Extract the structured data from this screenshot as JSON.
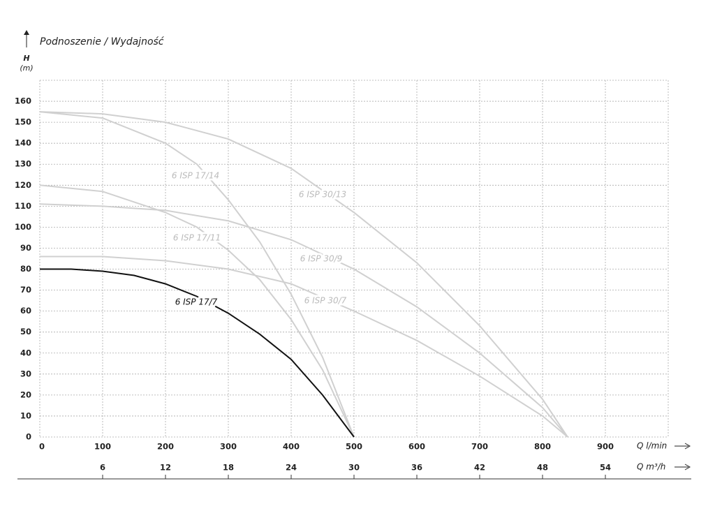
{
  "chart_data": {
    "type": "line",
    "title": "Podnoszenie / Wydajność",
    "ylabel": "H",
    "yunit": "(m)",
    "xlabel": "Q l/min",
    "x2label": "Q m³/h",
    "xlim": [
      0,
      1000
    ],
    "xticks": [
      0,
      100,
      200,
      300,
      400,
      500,
      600,
      700,
      800,
      900
    ],
    "x2lim": [
      0,
      60
    ],
    "x2ticks": [
      6,
      12,
      18,
      24,
      30,
      36,
      42,
      48,
      54
    ],
    "ylim": [
      0,
      170
    ],
    "yticks": [
      0,
      10,
      20,
      30,
      40,
      50,
      60,
      70,
      80,
      90,
      100,
      110,
      120,
      130,
      140,
      150,
      160
    ],
    "grid": true,
    "series": [
      {
        "name": "6 ISP 17/14",
        "color": "#d0d0d0",
        "x": [
          0,
          100,
          200,
          250,
          300,
          350,
          400,
          450,
          500
        ],
        "values": [
          155,
          152,
          140,
          130,
          113,
          93,
          68,
          38,
          0
        ]
      },
      {
        "name": "6 ISP 30/13",
        "color": "#d0d0d0",
        "x": [
          0,
          100,
          200,
          300,
          400,
          500,
          600,
          700,
          800,
          840
        ],
        "values": [
          155,
          154,
          150,
          142,
          128,
          107,
          83,
          53,
          18,
          0
        ]
      },
      {
        "name": "6 ISP 17/11",
        "color": "#d0d0d0",
        "x": [
          0,
          100,
          200,
          250,
          300,
          350,
          400,
          450,
          500
        ],
        "values": [
          120,
          117,
          107,
          100,
          89,
          75,
          56,
          32,
          0
        ]
      },
      {
        "name": "6 ISP 30/9",
        "color": "#d0d0d0",
        "x": [
          0,
          100,
          200,
          300,
          400,
          500,
          600,
          700,
          800,
          840
        ],
        "values": [
          111,
          110,
          108,
          103,
          94,
          80,
          62,
          40,
          14,
          0
        ]
      },
      {
        "name": "6 ISP 17/7",
        "color": "#111111",
        "x": [
          0,
          50,
          100,
          150,
          200,
          250,
          300,
          350,
          400,
          450,
          500
        ],
        "values": [
          80,
          80,
          79,
          77,
          73,
          67,
          59,
          49,
          37,
          20,
          0
        ]
      },
      {
        "name": "6 ISP 30/7",
        "color": "#d0d0d0",
        "x": [
          0,
          100,
          200,
          300,
          400,
          500,
          600,
          700,
          800,
          840
        ],
        "values": [
          86,
          86,
          84,
          80,
          73,
          60,
          46,
          29,
          10,
          0
        ]
      }
    ]
  }
}
